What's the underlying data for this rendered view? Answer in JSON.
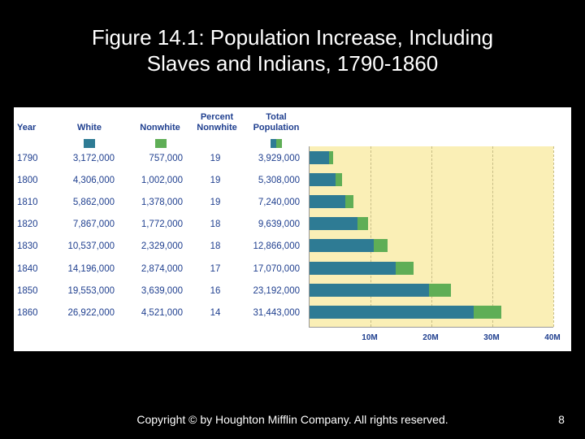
{
  "title": {
    "line1": "Figure 14.1: Population Increase, Including",
    "line2": "Slaves and Indians, 1790-1860"
  },
  "colors": {
    "white": "#2e7b94",
    "nonwhite": "#5fae56"
  },
  "headers": {
    "year": "Year",
    "white": "White",
    "nonwhite": "Nonwhite",
    "percent_line1": "Percent",
    "percent_line2": "Nonwhite",
    "total_line1": "Total",
    "total_line2": "Population"
  },
  "rows": [
    {
      "year": "1790",
      "white": "3,172,000",
      "nonwhite": "757,000",
      "percent": "19",
      "total": "3,929,000"
    },
    {
      "year": "1800",
      "white": "4,306,000",
      "nonwhite": "1,002,000",
      "percent": "19",
      "total": "5,308,000"
    },
    {
      "year": "1810",
      "white": "5,862,000",
      "nonwhite": "1,378,000",
      "percent": "19",
      "total": "7,240,000"
    },
    {
      "year": "1820",
      "white": "7,867,000",
      "nonwhite": "1,772,000",
      "percent": "18",
      "total": "9,639,000"
    },
    {
      "year": "1830",
      "white": "10,537,000",
      "nonwhite": "2,329,000",
      "percent": "18",
      "total": "12,866,000"
    },
    {
      "year": "1840",
      "white": "14,196,000",
      "nonwhite": "2,874,000",
      "percent": "17",
      "total": "17,070,000"
    },
    {
      "year": "1850",
      "white": "19,553,000",
      "nonwhite": "3,639,000",
      "percent": "16",
      "total": "23,192,000"
    },
    {
      "year": "1860",
      "white": "26,922,000",
      "nonwhite": "4,521,000",
      "percent": "14",
      "total": "31,443,000"
    }
  ],
  "chart_data": {
    "type": "bar",
    "orientation": "horizontal",
    "stacked": true,
    "categories": [
      "1790",
      "1800",
      "1810",
      "1820",
      "1830",
      "1840",
      "1850",
      "1860"
    ],
    "series": [
      {
        "values": [
          3172000,
          4306000,
          5862000,
          7867000,
          10537000,
          14196000,
          19553000,
          26922000
        ]
      },
      {
        "values": [
          757000,
          1002000,
          1378000,
          1772000,
          2329000,
          2874000,
          3639000,
          4521000
        ]
      }
    ],
    "xlim": [
      0,
      40000000
    ],
    "xticks": [
      10000000,
      20000000,
      30000000,
      40000000
    ],
    "xtick_labels": [
      "10M",
      "20M",
      "30M",
      "40M"
    ],
    "grid": true
  },
  "footer": {
    "copyright": "Copyright © by Houghton Mifflin Company. All rights reserved.",
    "page": "8"
  }
}
